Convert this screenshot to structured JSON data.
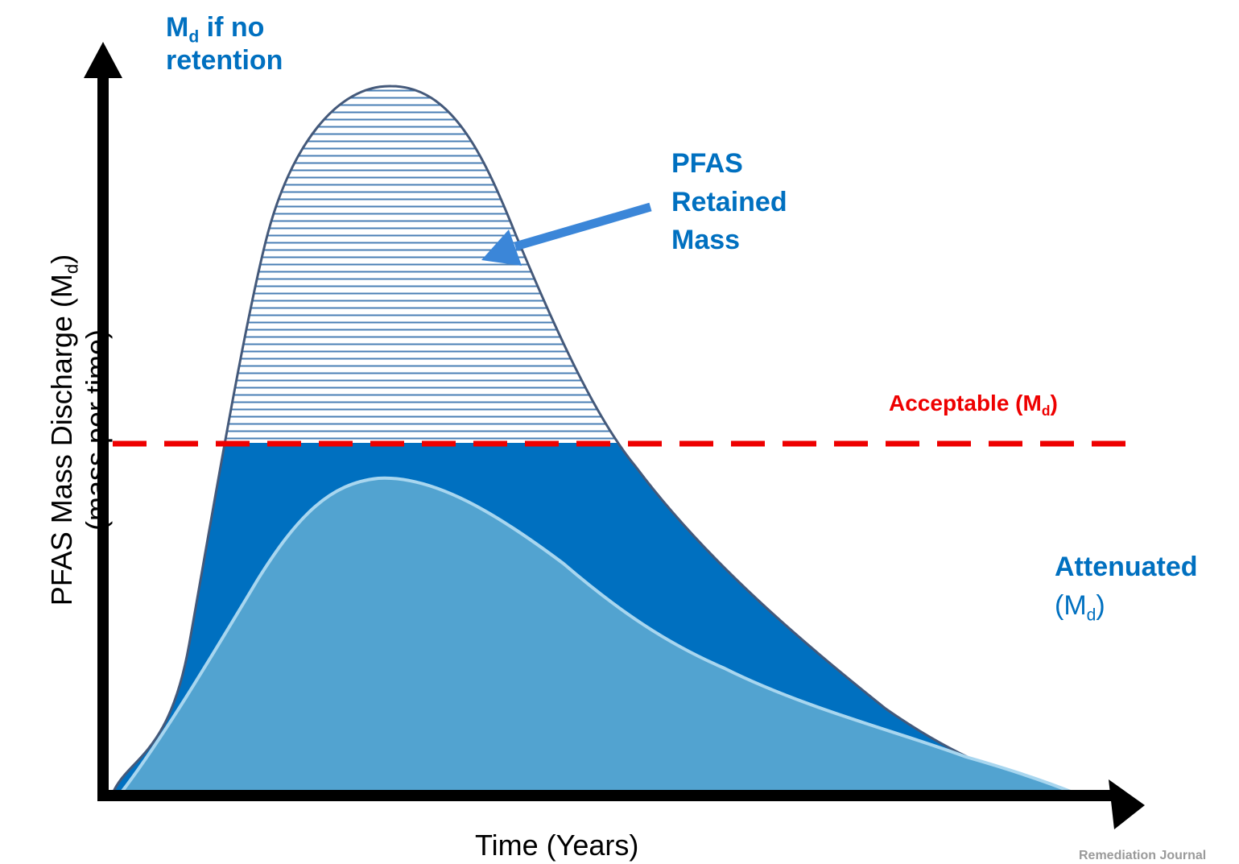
{
  "colors": {
    "no_retention": "#0070c0",
    "attenuated": "#52a3d0",
    "attenuated_outline": "#a8d6ef",
    "retained_hatch": "#4a7fb5",
    "outline": "#44597a",
    "acceptable_line": "#ee0000",
    "arrow": "#3b86d8",
    "axis": "#000000",
    "text_blue": "#0070c0"
  },
  "labels": {
    "no_retention_md": "M",
    "no_retention_sub": "d",
    "no_retention_rest": " if no",
    "no_retention_line2": "retention",
    "retained_line1": "PFAS",
    "retained_line2": "Retained",
    "retained_line3": "Mass",
    "acceptable_prefix": "Acceptable (M",
    "acceptable_sub": "d",
    "acceptable_suffix": ")",
    "attenuated_line1": "Attenuated",
    "attenuated_line2_prefix": "(M",
    "attenuated_sub": "d",
    "attenuated_line2_suffix": ")",
    "y_axis_line1_prefix": "PFAS Mass Discharge (M",
    "y_axis_sub": "d",
    "y_axis_line1_suffix": ")",
    "y_axis_line2": "(mass per time)",
    "x_axis": "Time (Years)",
    "credit": "Remediation Journal"
  }
}
